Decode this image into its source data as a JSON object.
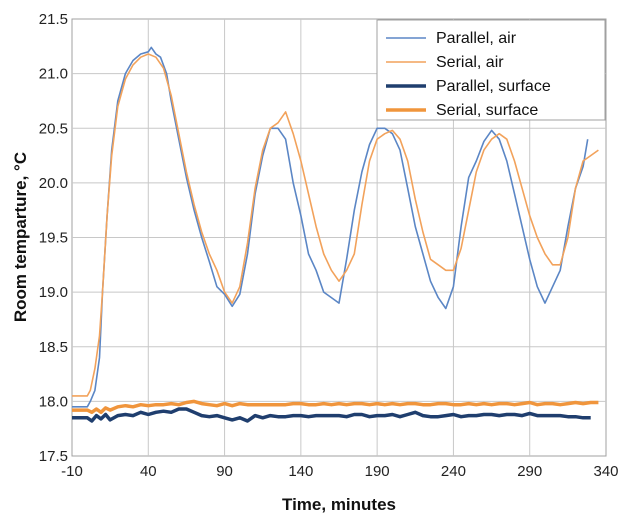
{
  "chart_data": {
    "type": "line",
    "title": "",
    "xlabel": "Time, minutes",
    "ylabel": "Room  temparture, °C",
    "xlim": [
      -10,
      340
    ],
    "ylim": [
      17.5,
      21.5
    ],
    "x_ticks": [
      -10,
      40,
      90,
      140,
      190,
      240,
      290,
      340
    ],
    "y_ticks": [
      17.5,
      18.0,
      18.5,
      19.0,
      19.5,
      20.0,
      20.5,
      21.0,
      21.5
    ],
    "x_tick_labels": [
      "-10",
      "40",
      "90",
      "140",
      "190",
      "240",
      "290",
      "340"
    ],
    "y_tick_labels": [
      "17.5",
      "18.0",
      "18.5",
      "19.0",
      "19.5",
      "20.0",
      "20.5",
      "21.0",
      "21.5"
    ],
    "grid": true,
    "legend_position": "top-right",
    "series": [
      {
        "name": "Parallel, air",
        "color": "#5b86c5",
        "style": "thin",
        "points": [
          [
            -10,
            17.95
          ],
          [
            -5,
            17.95
          ],
          [
            0,
            17.95
          ],
          [
            2,
            18.0
          ],
          [
            5,
            18.1
          ],
          [
            8,
            18.4
          ],
          [
            10,
            19.0
          ],
          [
            13,
            19.7
          ],
          [
            16,
            20.3
          ],
          [
            20,
            20.75
          ],
          [
            25,
            21.0
          ],
          [
            30,
            21.12
          ],
          [
            35,
            21.18
          ],
          [
            40,
            21.2
          ],
          [
            42,
            21.24
          ],
          [
            45,
            21.18
          ],
          [
            48,
            21.15
          ],
          [
            52,
            21.0
          ],
          [
            55,
            20.75
          ],
          [
            60,
            20.4
          ],
          [
            65,
            20.05
          ],
          [
            70,
            19.75
          ],
          [
            75,
            19.5
          ],
          [
            80,
            19.28
          ],
          [
            85,
            19.05
          ],
          [
            90,
            18.98
          ],
          [
            95,
            18.87
          ],
          [
            100,
            18.98
          ],
          [
            105,
            19.35
          ],
          [
            110,
            19.9
          ],
          [
            115,
            20.25
          ],
          [
            120,
            20.5
          ],
          [
            125,
            20.5
          ],
          [
            130,
            20.4
          ],
          [
            135,
            20.0
          ],
          [
            140,
            19.7
          ],
          [
            145,
            19.35
          ],
          [
            150,
            19.2
          ],
          [
            155,
            19.0
          ],
          [
            160,
            18.95
          ],
          [
            165,
            18.9
          ],
          [
            170,
            19.3
          ],
          [
            175,
            19.75
          ],
          [
            180,
            20.1
          ],
          [
            185,
            20.35
          ],
          [
            190,
            20.5
          ],
          [
            195,
            20.5
          ],
          [
            200,
            20.45
          ],
          [
            205,
            20.3
          ],
          [
            210,
            19.95
          ],
          [
            215,
            19.6
          ],
          [
            220,
            19.35
          ],
          [
            225,
            19.1
          ],
          [
            230,
            18.95
          ],
          [
            235,
            18.85
          ],
          [
            240,
            19.05
          ],
          [
            245,
            19.6
          ],
          [
            250,
            20.05
          ],
          [
            255,
            20.2
          ],
          [
            260,
            20.38
          ],
          [
            265,
            20.48
          ],
          [
            270,
            20.4
          ],
          [
            275,
            20.2
          ],
          [
            280,
            19.9
          ],
          [
            285,
            19.6
          ],
          [
            290,
            19.3
          ],
          [
            295,
            19.05
          ],
          [
            300,
            18.9
          ],
          [
            305,
            19.05
          ],
          [
            310,
            19.2
          ],
          [
            315,
            19.6
          ],
          [
            320,
            19.95
          ],
          [
            325,
            20.15
          ],
          [
            328,
            20.4
          ]
        ]
      },
      {
        "name": "Serial, air",
        "color": "#f2a25b",
        "style": "thin",
        "points": [
          [
            -10,
            18.05
          ],
          [
            -5,
            18.05
          ],
          [
            0,
            18.05
          ],
          [
            2,
            18.1
          ],
          [
            5,
            18.3
          ],
          [
            8,
            18.6
          ],
          [
            10,
            19.0
          ],
          [
            13,
            19.7
          ],
          [
            16,
            20.25
          ],
          [
            20,
            20.7
          ],
          [
            25,
            20.95
          ],
          [
            30,
            21.08
          ],
          [
            35,
            21.15
          ],
          [
            40,
            21.18
          ],
          [
            45,
            21.15
          ],
          [
            50,
            21.05
          ],
          [
            55,
            20.8
          ],
          [
            60,
            20.45
          ],
          [
            65,
            20.1
          ],
          [
            70,
            19.8
          ],
          [
            75,
            19.55
          ],
          [
            80,
            19.35
          ],
          [
            85,
            19.2
          ],
          [
            90,
            19.0
          ],
          [
            95,
            18.9
          ],
          [
            100,
            19.05
          ],
          [
            105,
            19.45
          ],
          [
            110,
            19.95
          ],
          [
            115,
            20.3
          ],
          [
            120,
            20.5
          ],
          [
            125,
            20.55
          ],
          [
            130,
            20.65
          ],
          [
            135,
            20.45
          ],
          [
            140,
            20.2
          ],
          [
            145,
            19.9
          ],
          [
            150,
            19.6
          ],
          [
            155,
            19.35
          ],
          [
            160,
            19.2
          ],
          [
            165,
            19.1
          ],
          [
            170,
            19.2
          ],
          [
            175,
            19.35
          ],
          [
            180,
            19.8
          ],
          [
            185,
            20.2
          ],
          [
            190,
            20.4
          ],
          [
            195,
            20.45
          ],
          [
            200,
            20.48
          ],
          [
            205,
            20.4
          ],
          [
            210,
            20.2
          ],
          [
            215,
            19.85
          ],
          [
            220,
            19.55
          ],
          [
            225,
            19.3
          ],
          [
            230,
            19.25
          ],
          [
            235,
            19.2
          ],
          [
            240,
            19.2
          ],
          [
            245,
            19.4
          ],
          [
            250,
            19.75
          ],
          [
            255,
            20.1
          ],
          [
            260,
            20.3
          ],
          [
            265,
            20.4
          ],
          [
            270,
            20.45
          ],
          [
            275,
            20.4
          ],
          [
            280,
            20.2
          ],
          [
            285,
            19.95
          ],
          [
            290,
            19.7
          ],
          [
            295,
            19.5
          ],
          [
            300,
            19.35
          ],
          [
            305,
            19.25
          ],
          [
            310,
            19.25
          ],
          [
            315,
            19.5
          ],
          [
            320,
            19.95
          ],
          [
            325,
            20.2
          ],
          [
            330,
            20.25
          ],
          [
            335,
            20.3
          ]
        ]
      },
      {
        "name": "Parallel, surface",
        "color": "#1f3e6e",
        "style": "thick",
        "points": [
          [
            -10,
            17.85
          ],
          [
            -5,
            17.85
          ],
          [
            0,
            17.85
          ],
          [
            3,
            17.82
          ],
          [
            6,
            17.87
          ],
          [
            9,
            17.84
          ],
          [
            12,
            17.88
          ],
          [
            15,
            17.83
          ],
          [
            20,
            17.87
          ],
          [
            25,
            17.88
          ],
          [
            30,
            17.87
          ],
          [
            35,
            17.9
          ],
          [
            40,
            17.88
          ],
          [
            45,
            17.9
          ],
          [
            50,
            17.91
          ],
          [
            55,
            17.9
          ],
          [
            60,
            17.93
          ],
          [
            65,
            17.93
          ],
          [
            70,
            17.9
          ],
          [
            75,
            17.87
          ],
          [
            80,
            17.86
          ],
          [
            85,
            17.87
          ],
          [
            90,
            17.85
          ],
          [
            95,
            17.83
          ],
          [
            100,
            17.85
          ],
          [
            105,
            17.82
          ],
          [
            110,
            17.87
          ],
          [
            115,
            17.85
          ],
          [
            120,
            17.87
          ],
          [
            125,
            17.86
          ],
          [
            130,
            17.86
          ],
          [
            135,
            17.87
          ],
          [
            140,
            17.87
          ],
          [
            145,
            17.86
          ],
          [
            150,
            17.87
          ],
          [
            155,
            17.87
          ],
          [
            160,
            17.87
          ],
          [
            165,
            17.87
          ],
          [
            170,
            17.86
          ],
          [
            175,
            17.88
          ],
          [
            180,
            17.88
          ],
          [
            185,
            17.86
          ],
          [
            190,
            17.87
          ],
          [
            195,
            17.87
          ],
          [
            200,
            17.88
          ],
          [
            205,
            17.86
          ],
          [
            210,
            17.88
          ],
          [
            215,
            17.9
          ],
          [
            220,
            17.87
          ],
          [
            225,
            17.86
          ],
          [
            230,
            17.86
          ],
          [
            235,
            17.87
          ],
          [
            240,
            17.88
          ],
          [
            245,
            17.86
          ],
          [
            250,
            17.87
          ],
          [
            255,
            17.87
          ],
          [
            260,
            17.88
          ],
          [
            265,
            17.88
          ],
          [
            270,
            17.87
          ],
          [
            275,
            17.88
          ],
          [
            280,
            17.88
          ],
          [
            285,
            17.87
          ],
          [
            290,
            17.89
          ],
          [
            295,
            17.87
          ],
          [
            300,
            17.87
          ],
          [
            305,
            17.87
          ],
          [
            310,
            17.87
          ],
          [
            315,
            17.86
          ],
          [
            320,
            17.86
          ],
          [
            325,
            17.85
          ],
          [
            330,
            17.85
          ]
        ]
      },
      {
        "name": "Serial, surface",
        "color": "#f0953c",
        "style": "thick",
        "points": [
          [
            -10,
            17.92
          ],
          [
            -5,
            17.92
          ],
          [
            0,
            17.92
          ],
          [
            3,
            17.9
          ],
          [
            6,
            17.93
          ],
          [
            9,
            17.9
          ],
          [
            12,
            17.94
          ],
          [
            15,
            17.92
          ],
          [
            20,
            17.95
          ],
          [
            25,
            17.96
          ],
          [
            30,
            17.95
          ],
          [
            35,
            17.97
          ],
          [
            40,
            17.96
          ],
          [
            45,
            17.97
          ],
          [
            50,
            17.97
          ],
          [
            55,
            17.98
          ],
          [
            60,
            17.97
          ],
          [
            65,
            17.99
          ],
          [
            70,
            18.0
          ],
          [
            75,
            17.98
          ],
          [
            80,
            17.97
          ],
          [
            85,
            17.96
          ],
          [
            90,
            17.98
          ],
          [
            95,
            17.96
          ],
          [
            100,
            17.98
          ],
          [
            105,
            17.97
          ],
          [
            110,
            17.97
          ],
          [
            115,
            17.97
          ],
          [
            120,
            17.97
          ],
          [
            125,
            17.97
          ],
          [
            130,
            17.97
          ],
          [
            135,
            17.98
          ],
          [
            140,
            17.98
          ],
          [
            145,
            17.97
          ],
          [
            150,
            17.97
          ],
          [
            155,
            17.98
          ],
          [
            160,
            17.97
          ],
          [
            165,
            17.98
          ],
          [
            170,
            17.97
          ],
          [
            175,
            17.98
          ],
          [
            180,
            17.98
          ],
          [
            185,
            17.97
          ],
          [
            190,
            17.98
          ],
          [
            195,
            17.97
          ],
          [
            200,
            17.98
          ],
          [
            205,
            17.97
          ],
          [
            210,
            17.98
          ],
          [
            215,
            17.98
          ],
          [
            220,
            17.97
          ],
          [
            225,
            17.97
          ],
          [
            230,
            17.98
          ],
          [
            235,
            17.98
          ],
          [
            240,
            17.97
          ],
          [
            245,
            17.97
          ],
          [
            250,
            17.98
          ],
          [
            255,
            17.97
          ],
          [
            260,
            17.98
          ],
          [
            265,
            17.97
          ],
          [
            270,
            17.98
          ],
          [
            275,
            17.98
          ],
          [
            280,
            17.97
          ],
          [
            285,
            17.98
          ],
          [
            290,
            17.99
          ],
          [
            295,
            17.97
          ],
          [
            300,
            17.98
          ],
          [
            305,
            17.98
          ],
          [
            310,
            17.97
          ],
          [
            315,
            17.98
          ],
          [
            320,
            17.99
          ],
          [
            325,
            17.98
          ],
          [
            330,
            17.99
          ],
          [
            335,
            17.99
          ]
        ]
      }
    ]
  }
}
